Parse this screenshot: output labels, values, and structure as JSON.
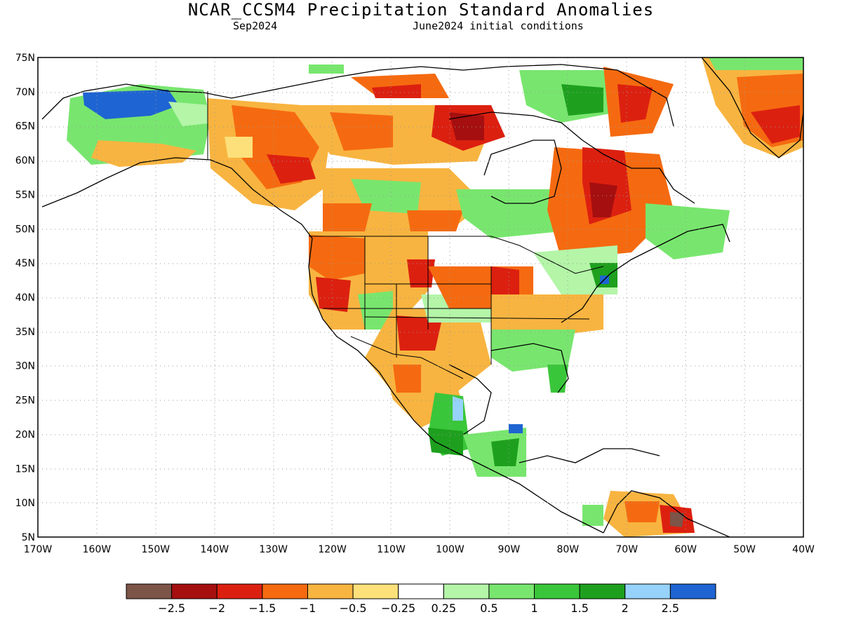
{
  "header": {
    "title": "NCAR_CCSM4 Precipitation Standard Anomalies",
    "valid_month": "Sep2024",
    "init": "June2024 initial conditions"
  },
  "axes": {
    "lat_labels": [
      "75N",
      "70N",
      "65N",
      "60N",
      "55N",
      "50N",
      "45N",
      "40N",
      "35N",
      "30N",
      "25N",
      "20N",
      "15N",
      "10N",
      "5N"
    ],
    "lat_values": [
      75,
      70,
      65,
      60,
      55,
      50,
      45,
      40,
      35,
      30,
      25,
      20,
      15,
      10,
      5
    ],
    "lon_labels": [
      "170W",
      "160W",
      "150W",
      "140W",
      "130W",
      "120W",
      "110W",
      "100W",
      "90W",
      "80W",
      "70W",
      "60W",
      "50W",
      "40W"
    ],
    "lon_values": [
      -170,
      -160,
      -150,
      -140,
      -130,
      -120,
      -110,
      -100,
      -90,
      -80,
      -70,
      -60,
      -50,
      -40
    ],
    "lon_range": [
      -170,
      -40
    ],
    "lat_range": [
      5,
      75
    ],
    "grid": "dotted"
  },
  "colorbar": {
    "colors": [
      "#7d5448",
      "#a50f0f",
      "#dc2010",
      "#f56a10",
      "#f8b440",
      "#fde07a",
      "#ffffff",
      "#b4f5a8",
      "#78e66e",
      "#3ac63a",
      "#1ea01e",
      "#96d2fa",
      "#1e64d2"
    ],
    "labels": [
      "−2.5",
      "−2",
      "−1.5",
      "−1",
      "−0.5",
      "−0.25",
      "0.25",
      "0.5",
      "1",
      "1.5",
      "2",
      "2.5"
    ]
  }
}
